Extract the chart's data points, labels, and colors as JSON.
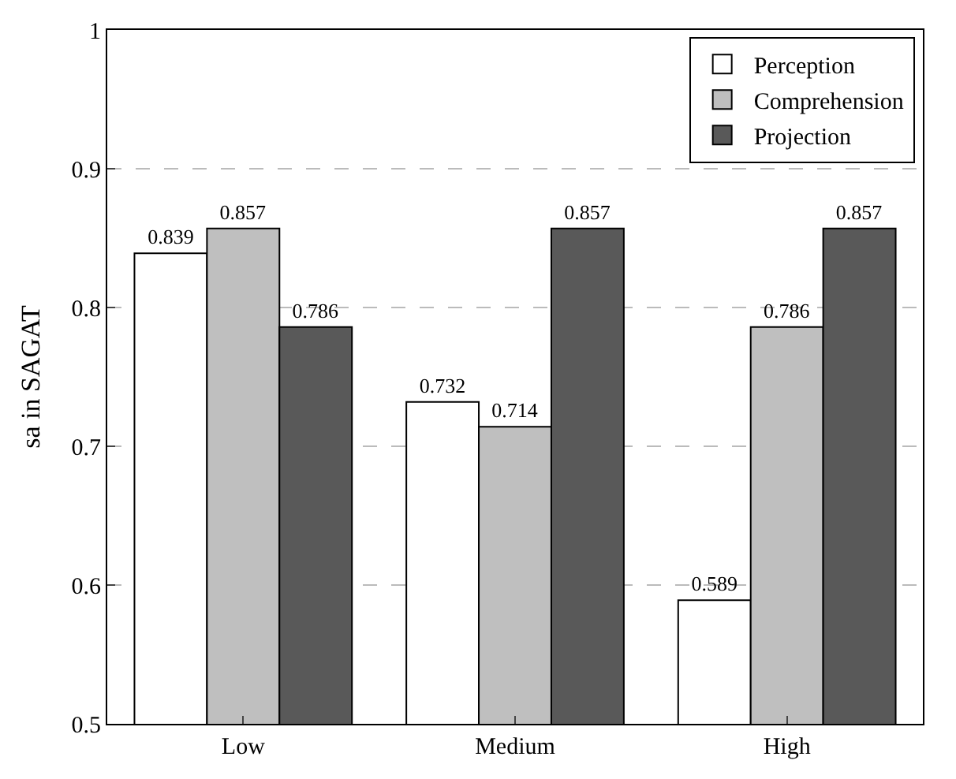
{
  "chart_data": {
    "type": "bar",
    "ylabel": "sa in SAGAT",
    "categories": [
      "Low",
      "Medium",
      "High"
    ],
    "series": [
      {
        "name": "Perception",
        "color": "#ffffff",
        "values": [
          0.839,
          0.732,
          0.589
        ]
      },
      {
        "name": "Comprehension",
        "color": "#bfbfbf",
        "values": [
          0.857,
          0.714,
          0.786
        ]
      },
      {
        "name": "Projection",
        "color": "#595959",
        "values": [
          0.786,
          0.857,
          0.857
        ]
      }
    ],
    "ylim": [
      0.5,
      1
    ],
    "yticks": [
      0.5,
      0.6,
      0.7,
      0.8,
      0.9,
      1
    ],
    "grid": "y",
    "legend": "top right",
    "data_labels": true
  }
}
